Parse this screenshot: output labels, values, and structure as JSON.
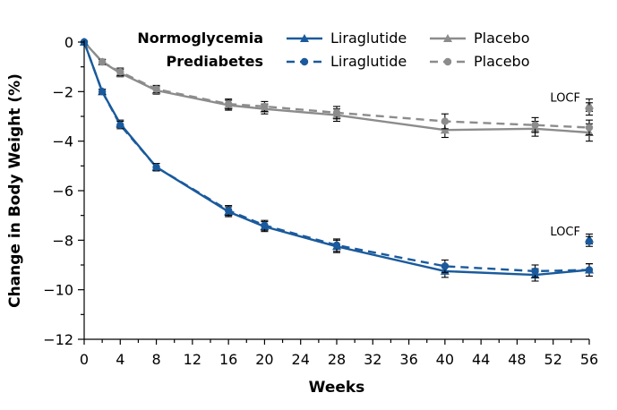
{
  "chart_data": {
    "type": "line",
    "xlabel": "Weeks",
    "ylabel": "Change in Body Weight (%)",
    "xlim": [
      0,
      56
    ],
    "ylim": [
      -12,
      0
    ],
    "xticks": [
      0,
      4,
      8,
      12,
      16,
      20,
      24,
      28,
      32,
      36,
      40,
      44,
      48,
      52,
      56
    ],
    "yticks": [
      0,
      -2,
      -4,
      -6,
      -8,
      -10,
      -12
    ],
    "ytick_labels": [
      "0",
      "−2",
      "−4",
      "−6",
      "−8",
      "−10",
      "−12"
    ],
    "legend": {
      "groups": [
        "Normoglycemia",
        "Prediabetes"
      ],
      "entries": [
        {
          "group": "Normoglycemia",
          "label": "Liraglutide",
          "color": "#1a5a9c",
          "dash": false,
          "marker": "triangle"
        },
        {
          "group": "Normoglycemia",
          "label": "Placebo",
          "color": "#8c8c8c",
          "dash": false,
          "marker": "triangle"
        },
        {
          "group": "Prediabetes",
          "label": "Liraglutide",
          "color": "#1a5a9c",
          "dash": true,
          "marker": "circle"
        },
        {
          "group": "Prediabetes",
          "label": "Placebo",
          "color": "#8c8c8c",
          "dash": true,
          "marker": "circle"
        }
      ]
    },
    "series": [
      {
        "name": "Normoglycemia Liraglutide",
        "color": "#1a5a9c",
        "dash": false,
        "marker": "triangle",
        "x": [
          0,
          2,
          4,
          8,
          16,
          20,
          28,
          40,
          50,
          56
        ],
        "y": [
          0,
          -2.0,
          -3.3,
          -5.05,
          -6.85,
          -7.45,
          -8.25,
          -9.25,
          -9.4,
          -9.2
        ],
        "err": [
          0,
          0.1,
          0.15,
          0.15,
          0.2,
          0.2,
          0.25,
          0.25,
          0.25,
          0.25
        ]
      },
      {
        "name": "Prediabetes Liraglutide",
        "color": "#1a5a9c",
        "dash": true,
        "marker": "circle",
        "x": [
          0,
          2,
          4,
          8,
          16,
          20,
          28,
          40,
          50,
          56
        ],
        "y": [
          0,
          -2.0,
          -3.35,
          -5.05,
          -6.8,
          -7.4,
          -8.2,
          -9.05,
          -9.25,
          -9.2
        ],
        "err": [
          0,
          0.1,
          0.15,
          0.15,
          0.2,
          0.2,
          0.25,
          0.25,
          0.25,
          0.25
        ]
      },
      {
        "name": "Normoglycemia Placebo",
        "color": "#8c8c8c",
        "dash": false,
        "marker": "triangle",
        "x": [
          0,
          2,
          4,
          8,
          16,
          20,
          28,
          40,
          50,
          56
        ],
        "y": [
          0,
          -0.8,
          -1.25,
          -1.95,
          -2.55,
          -2.7,
          -2.95,
          -3.55,
          -3.5,
          -3.65
        ],
        "err": [
          0,
          0.1,
          0.15,
          0.15,
          0.2,
          0.2,
          0.25,
          0.3,
          0.3,
          0.35
        ]
      },
      {
        "name": "Prediabetes Placebo",
        "color": "#8c8c8c",
        "dash": true,
        "marker": "circle",
        "x": [
          0,
          2,
          4,
          8,
          16,
          20,
          28,
          40,
          50,
          56
        ],
        "y": [
          0,
          -0.8,
          -1.2,
          -1.9,
          -2.5,
          -2.6,
          -2.85,
          -3.2,
          -3.35,
          -3.45
        ],
        "err": [
          0,
          0.1,
          0.15,
          0.15,
          0.2,
          0.2,
          0.25,
          0.3,
          0.3,
          0.3
        ]
      }
    ],
    "locf": [
      {
        "label": "LOCF",
        "color": "#8c8c8c",
        "x": 56,
        "points": [
          {
            "y": -2.55,
            "err": 0.25,
            "marker": "triangle"
          },
          {
            "y": -2.7,
            "err": 0.25,
            "marker": "circle"
          }
        ]
      },
      {
        "label": "LOCF",
        "color": "#1a5a9c",
        "x": 56,
        "points": [
          {
            "y": -7.95,
            "err": 0.2,
            "marker": "triangle"
          },
          {
            "y": -8.05,
            "err": 0.2,
            "marker": "circle"
          }
        ]
      }
    ]
  }
}
